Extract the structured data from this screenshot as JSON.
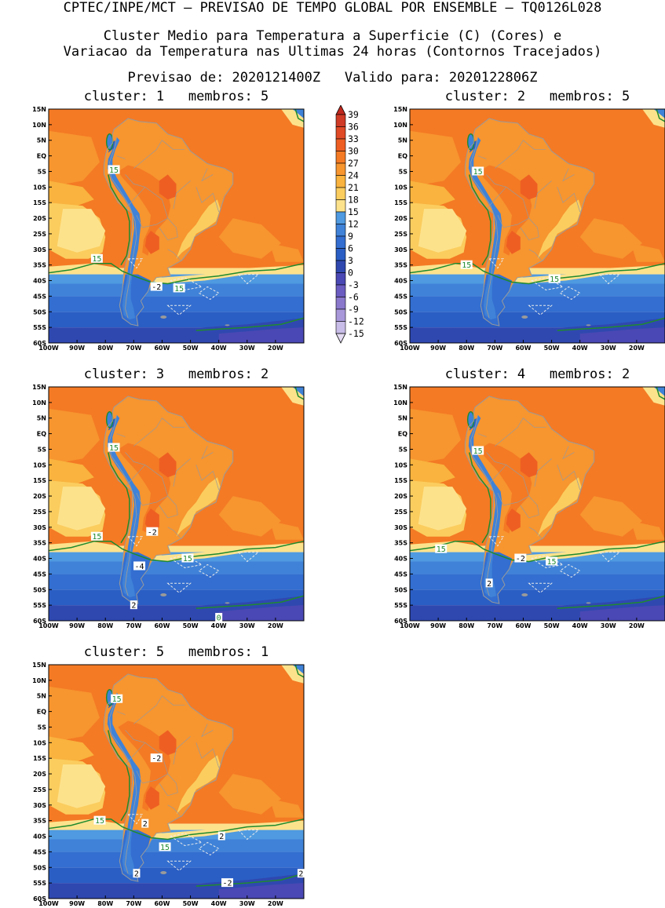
{
  "header": {
    "line1": "CPTEC/INPE/MCT – PREVISAO DE TEMPO GLOBAL POR ENSEMBLE – TQ0126L028",
    "line2": "Cluster Medio para Temperatura a Superficie (C) (Cores) e",
    "line3": "Variacao da Temperatura nas Ultimas 24 horas (Contornos Tracejados)",
    "line4": "Previsao de: 2020121400Z   Valido para: 2020122806Z"
  },
  "axes": {
    "lat_labels": [
      "15N",
      "10N",
      "5N",
      "EQ",
      "5S",
      "10S",
      "15S",
      "20S",
      "25S",
      "30S",
      "35S",
      "40S",
      "45S",
      "50S",
      "55S",
      "60S"
    ],
    "lon_labels": [
      "100W",
      "90W",
      "80W",
      "70W",
      "60W",
      "50W",
      "40W",
      "30W",
      "20W"
    ]
  },
  "colorbar": {
    "levels": [
      "39",
      "36",
      "33",
      "30",
      "27",
      "24",
      "21",
      "18",
      "15",
      "12",
      "9",
      "6",
      "3",
      "0",
      "-3",
      "-6",
      "-9",
      "-12",
      "-15"
    ],
    "colors": [
      "#c0281e",
      "#cf3b26",
      "#e04a26",
      "#ee5e22",
      "#f47a24",
      "#f7952f",
      "#f9b33e",
      "#fbcd5e",
      "#fde28c",
      "#4f9ae0",
      "#3f82d8",
      "#336ed0",
      "#2a5ec4",
      "#2f48b0",
      "#4a48b4",
      "#6a5cc0",
      "#8a78cc",
      "#a898da",
      "#c8bce8",
      "#e4dcf2"
    ]
  },
  "panels": [
    {
      "title": "cluster: 1   membros: 5",
      "contour_labels": [
        {
          "text": "15",
          "lon": -77,
          "lat": -4.5
        },
        {
          "text": "15",
          "lon": -83,
          "lat": -33
        },
        {
          "text": "15",
          "lon": -54,
          "lat": -42.5
        },
        {
          "text": "-2",
          "lon": -62,
          "lat": -42
        }
      ]
    },
    {
      "title": "cluster: 2   membros: 5",
      "contour_labels": [
        {
          "text": "15",
          "lon": -76,
          "lat": -5
        },
        {
          "text": "15",
          "lon": -80,
          "lat": -35
        },
        {
          "text": "15",
          "lon": -49,
          "lat": -39.5
        }
      ]
    },
    {
      "title": "cluster: 3   membros: 2",
      "contour_labels": [
        {
          "text": "15",
          "lon": -77,
          "lat": -4.5
        },
        {
          "text": "15",
          "lon": -83,
          "lat": -33
        },
        {
          "text": "15",
          "lon": -51,
          "lat": -40
        },
        {
          "text": "-2",
          "lon": -63.5,
          "lat": -31.5
        },
        {
          "text": "-4",
          "lon": -68,
          "lat": -42.5
        },
        {
          "text": "2",
          "lon": -70,
          "lat": -55
        },
        {
          "text": "0",
          "lon": -40,
          "lat": -59
        }
      ]
    },
    {
      "title": "cluster: 4   membros: 2",
      "contour_labels": [
        {
          "text": "15",
          "lon": -76,
          "lat": -5.5
        },
        {
          "text": "15",
          "lon": -89,
          "lat": -37
        },
        {
          "text": "15",
          "lon": -50,
          "lat": -41
        },
        {
          "text": "-2",
          "lon": -61,
          "lat": -40
        },
        {
          "text": "2",
          "lon": -72,
          "lat": -48
        }
      ]
    },
    {
      "title": "cluster: 5   membros: 1",
      "contour_labels": [
        {
          "text": "15",
          "lon": -76,
          "lat": 4
        },
        {
          "text": "15",
          "lon": -82,
          "lat": -35
        },
        {
          "text": "15",
          "lon": -59,
          "lat": -43.5
        },
        {
          "text": "-2",
          "lon": -62,
          "lat": -15
        },
        {
          "text": "2",
          "lon": -66,
          "lat": -36
        },
        {
          "text": "2",
          "lon": -39,
          "lat": -40
        },
        {
          "text": "2",
          "lon": -69,
          "lat": -52
        },
        {
          "text": "-2",
          "lon": -37,
          "lat": -55
        },
        {
          "text": "2",
          "lon": -11,
          "lat": -52
        }
      ]
    }
  ]
}
